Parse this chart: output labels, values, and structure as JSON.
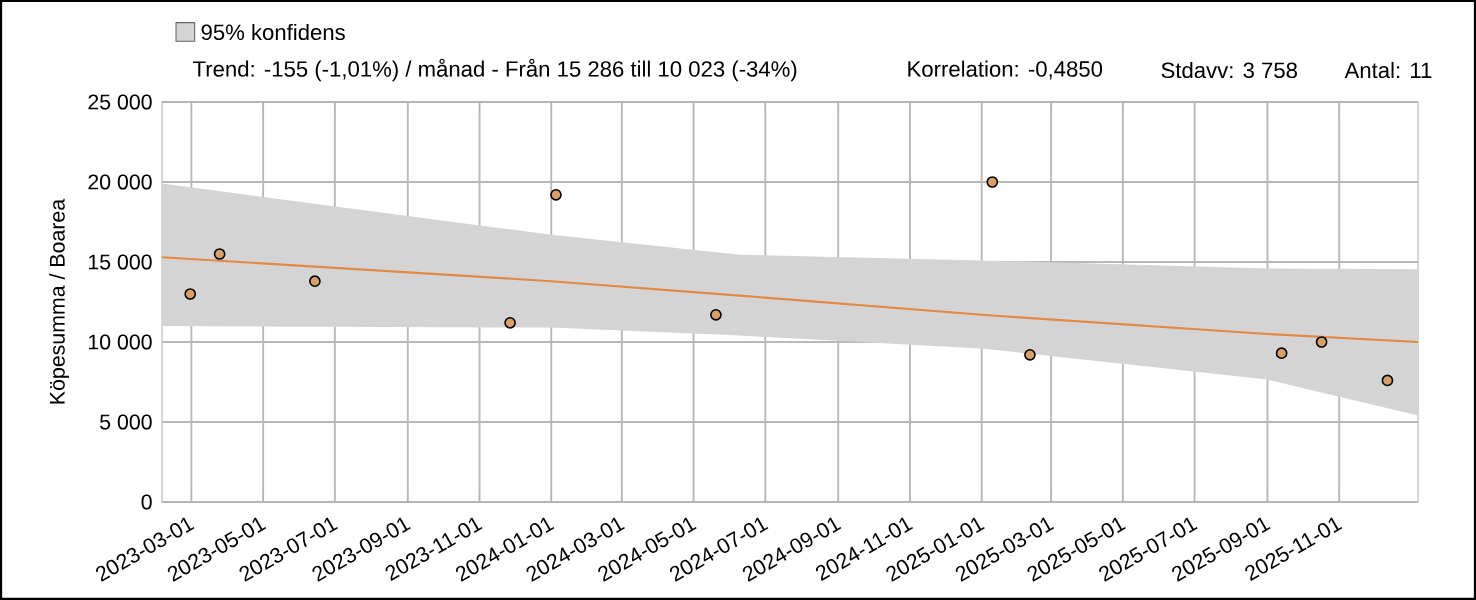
{
  "chart_data": {
    "type": "scatter",
    "ylabel": "Köpesumma / Boarea",
    "xlim": [
      "2023-02-04",
      "2026-01-07"
    ],
    "xticks": [
      "2023-03-01",
      "2023-05-01",
      "2023-07-01",
      "2023-09-01",
      "2023-11-01",
      "2024-01-01",
      "2024-03-01",
      "2024-05-01",
      "2024-07-01",
      "2024-09-01",
      "2024-11-01",
      "2025-01-01",
      "2025-03-01",
      "2025-05-01",
      "2025-07-01",
      "2025-09-01",
      "2025-11-01"
    ],
    "ylim": [
      0,
      25000
    ],
    "yticks": [
      {
        "value": 0,
        "label": "0"
      },
      {
        "value": 5000,
        "label": "5 000"
      },
      {
        "value": 10000,
        "label": "10 000"
      },
      {
        "value": 15000,
        "label": "15 000"
      },
      {
        "value": 20000,
        "label": "20 000"
      },
      {
        "value": 25000,
        "label": "25 000"
      }
    ],
    "grid": true,
    "legend": "top",
    "line_style": "solid",
    "series": [
      {
        "type": "line",
        "name": "95% konfidens",
        "color": "#e08a45",
        "x": [
          "2023-02-04",
          "2024-01-01",
          "2024-06-09",
          "2025-01-01",
          "2025-09-01",
          "2026-01-07"
        ],
        "marker": "none",
        "values": [
          15300,
          13800,
          12900,
          11700,
          10500,
          10000
        ],
        "lower": [
          11000,
          10900,
          10400,
          9600,
          7650,
          5400
        ],
        "upper": [
          19900,
          16700,
          15450,
          15100,
          14600,
          14550
        ]
      },
      {
        "color": "#d9a066",
        "marker": "circle",
        "x": [
          "2023-02-28",
          "2023-03-25",
          "2023-06-14",
          "2023-11-27",
          "2024-01-05",
          "2024-05-20",
          "2025-01-10",
          "2025-02-11",
          "2025-09-13",
          "2025-10-17",
          "2025-12-12"
        ],
        "values": [
          13000,
          15500,
          13800,
          11200,
          19200,
          11700,
          20000,
          9200,
          9300,
          10000,
          7600
        ]
      }
    ],
    "annotations": [
      "Trend: -155 (-1,01%) / månad  -  Från 15 286 till 10 023 (-34%)",
      "Korrelation: -0,4850",
      "Stdavv: 3 758",
      "Antal: 11"
    ]
  }
}
